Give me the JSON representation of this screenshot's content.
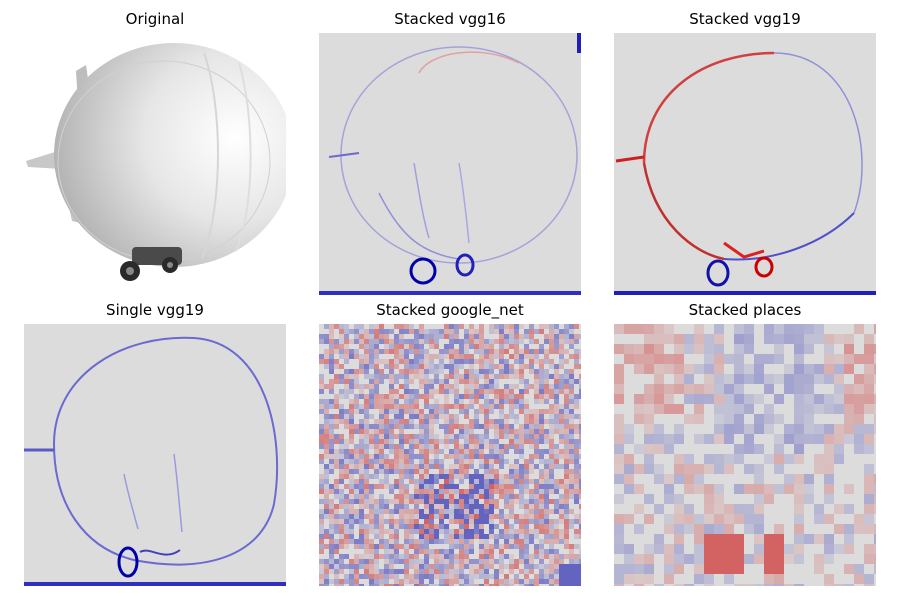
{
  "panels": [
    {
      "title": "Original"
    },
    {
      "title": "Stacked vgg16"
    },
    {
      "title": "Stacked vgg19"
    },
    {
      "title": "Single vgg19"
    },
    {
      "title": "Stacked google_net"
    },
    {
      "title": "Stacked places"
    }
  ],
  "colors": {
    "background": "#dcdcdc",
    "positive": "#cc0000",
    "negative": "#0000aa",
    "photo_gray": "#d4d4d4"
  }
}
